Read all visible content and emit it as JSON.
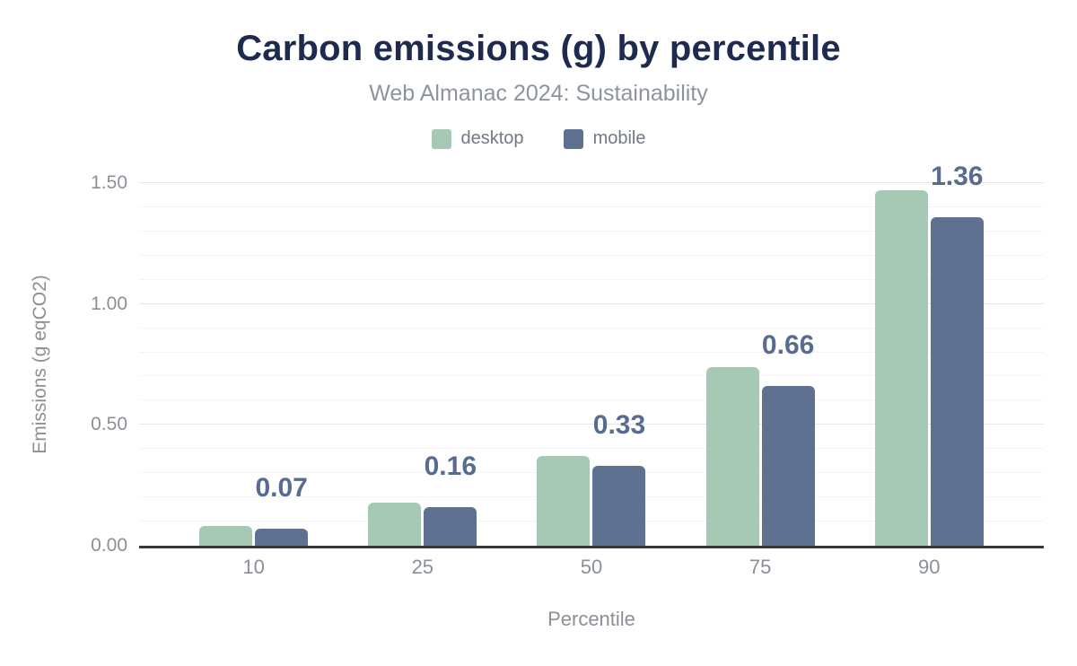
{
  "title": "Carbon emissions (g) by percentile",
  "subtitle": "Web Almanac 2024: Sustainability",
  "legend": {
    "items": [
      {
        "label": "desktop",
        "color": "#a6c9b5"
      },
      {
        "label": "mobile",
        "color": "#5f7190"
      }
    ]
  },
  "chart_data": {
    "type": "bar",
    "title": "Carbon emissions (g) by percentile",
    "subtitle": "Web Almanac 2024: Sustainability",
    "categories": [
      "10",
      "25",
      "50",
      "75",
      "90"
    ],
    "series": [
      {
        "name": "desktop",
        "color": "#a6c9b5",
        "values": [
          0.08,
          0.18,
          0.37,
          0.74,
          1.47
        ]
      },
      {
        "name": "mobile",
        "color": "#5f7190",
        "values": [
          0.07,
          0.16,
          0.33,
          0.66,
          1.36
        ]
      }
    ],
    "bar_labels": {
      "series": "mobile",
      "values": [
        "0.07",
        "0.16",
        "0.33",
        "0.66",
        "1.36"
      ]
    },
    "xlabel": "Percentile",
    "ylabel": "Emissions (g eqCO2)",
    "ylim": [
      0,
      1.5
    ],
    "yticks": [
      {
        "value": 0.0,
        "label": "0.00"
      },
      {
        "value": 0.5,
        "label": "0.50"
      },
      {
        "value": 1.0,
        "label": "1.00"
      },
      {
        "value": 1.5,
        "label": "1.50"
      }
    ],
    "minor_tick_step": 0.1,
    "major_tick_step": 0.5,
    "grid": "horizontal, major and minor",
    "legend_position": "top"
  },
  "colors": {
    "background": "#ffffff",
    "title": "#1e2b4e",
    "subtitle": "#8e949c",
    "legend_text": "#707986",
    "axis_text": "#8b9097",
    "value_label": "#586b91",
    "desktop": "#a6c9b5",
    "mobile": "#5f7190",
    "gridline_major": "#e7e7ea",
    "gridline_minor": "#f4f4f6",
    "baseline": "#34373c"
  }
}
